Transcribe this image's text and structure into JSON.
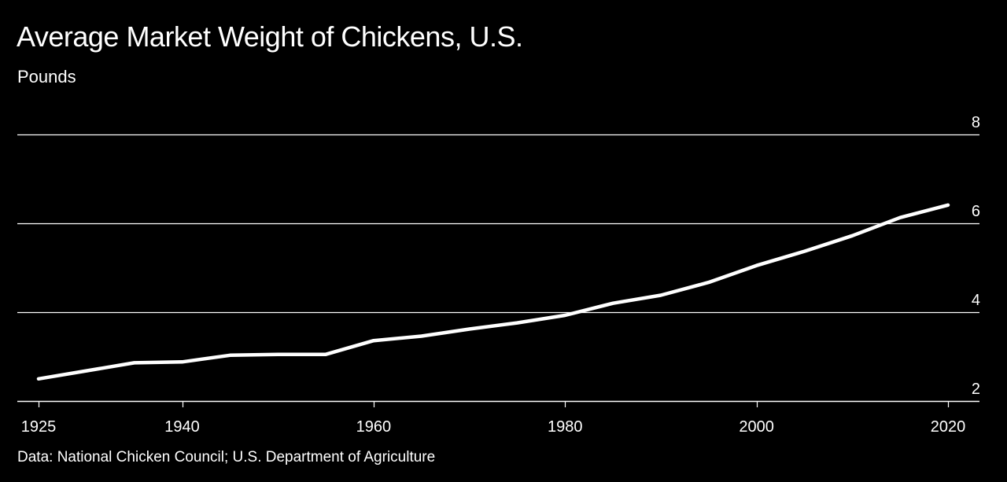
{
  "chart_data": {
    "type": "line",
    "title": "Average Market Weight of Chickens, U.S.",
    "subtitle": "Pounds",
    "source": "Data: National Chicken Council; U.S. Department of Agriculture",
    "xlabel": "",
    "ylabel": "",
    "xlim": [
      1925,
      2020
    ],
    "ylim": [
      2,
      8
    ],
    "x_ticks": [
      1925,
      1940,
      1960,
      1980,
      2000,
      2020
    ],
    "y_ticks": [
      2,
      4,
      6,
      8
    ],
    "y_axis_side": "right",
    "grid": true,
    "legend": false,
    "series": [
      {
        "x": [
          1925,
          1930,
          1935,
          1940,
          1945,
          1950,
          1955,
          1960,
          1965,
          1970,
          1975,
          1980,
          1985,
          1990,
          1995,
          2000,
          2005,
          2010,
          2015,
          2020
        ],
        "y": [
          2.5,
          2.68,
          2.86,
          2.88,
          3.03,
          3.05,
          3.05,
          3.36,
          3.46,
          3.62,
          3.76,
          3.93,
          4.2,
          4.38,
          4.67,
          5.05,
          5.37,
          5.72,
          6.13,
          6.41
        ]
      }
    ],
    "colors": {
      "background": "#000000",
      "line": "#ffffff",
      "grid": "#ffffff",
      "text": "#ffffff"
    }
  }
}
